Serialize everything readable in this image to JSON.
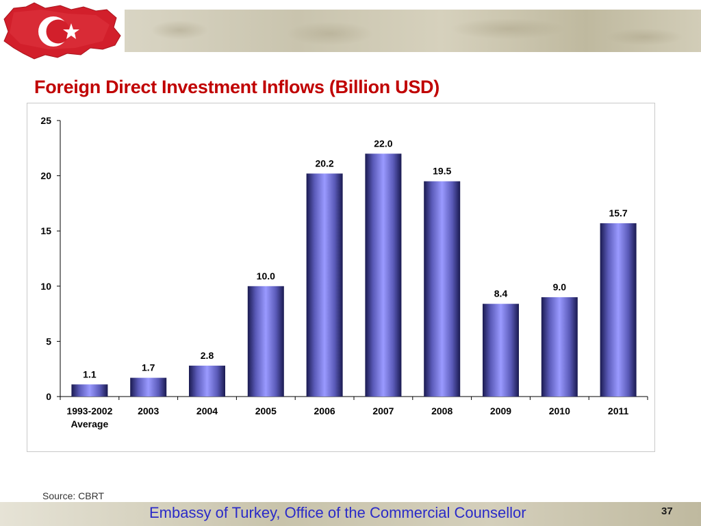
{
  "slide": {
    "title": "Foreign Direct Investment Inflows (Billion USD)",
    "source": "Source: CBRT",
    "footer": "Embassy of Turkey, Office of the Commercial Counsellor",
    "page_number": "37"
  },
  "colors": {
    "title": "#c00000",
    "footer_text": "#2a2ac8",
    "bar_center": "#9a9aff",
    "bar_edge": "#1a1a50"
  },
  "logo": {
    "name": "turkey-flag-map-logo",
    "flag_red": "#d21f2b",
    "crescent": "#ffffff"
  },
  "chart_data": {
    "type": "bar",
    "categories": [
      "1993-2002\nAverage",
      "2003",
      "2004",
      "2005",
      "2006",
      "2007",
      "2008",
      "2009",
      "2010",
      "2011"
    ],
    "values": [
      1.1,
      1.7,
      2.8,
      10.0,
      20.2,
      22.0,
      19.5,
      8.4,
      9.0,
      15.7
    ],
    "data_labels": [
      "1.1",
      "1.7",
      "2.8",
      "10.0",
      "20.2",
      "22.0",
      "19.5",
      "8.4",
      "9.0",
      "15.7"
    ],
    "yticks": [
      0,
      5,
      10,
      15,
      20,
      25
    ],
    "ylim": [
      0,
      25
    ],
    "xlabel": "",
    "ylabel": "",
    "grid": false,
    "legend": "none"
  }
}
